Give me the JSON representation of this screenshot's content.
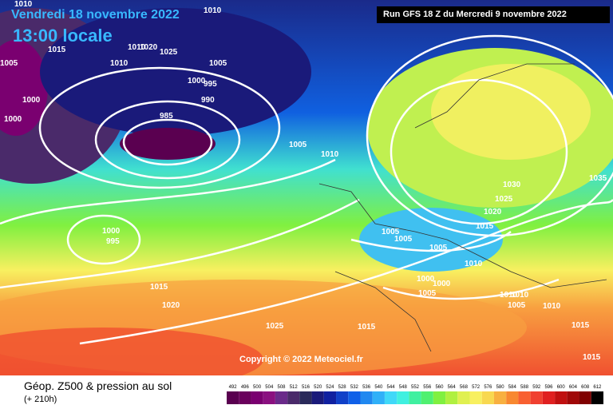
{
  "header": {
    "date_line": "Vendredi 18 novembre 2022",
    "time_line": "13:00 locale",
    "run_info": "Run GFS 18 Z du Mercredi 9 novembre 2022"
  },
  "map": {
    "copyright": "Copyright © 2022 Meteociel.fr",
    "pressure_labels": [
      "1010",
      "1010",
      "1015",
      "1010",
      "1020",
      "1025",
      "1010",
      "1005",
      "1005",
      "1000",
      "995",
      "990",
      "985",
      "1000",
      "1000",
      "1005",
      "1010",
      "1030",
      "1025",
      "1020",
      "1015",
      "1035",
      "1005",
      "1005",
      "1005",
      "1010",
      "1000",
      "1000",
      "1000",
      "995",
      "1005",
      "1015",
      "1020",
      "1025",
      "1015",
      "1010",
      "1010",
      "1005",
      "1010",
      "1015",
      "1015"
    ]
  },
  "legend": {
    "title": "Géop. Z500 & pression au sol",
    "subtitle": "(+ 210h)",
    "scale_values": [
      "492",
      "496",
      "500",
      "504",
      "508",
      "512",
      "516",
      "520",
      "524",
      "528",
      "532",
      "536",
      "540",
      "544",
      "548",
      "552",
      "556",
      "560",
      "564",
      "568",
      "572",
      "576",
      "580",
      "584",
      "588",
      "592",
      "596",
      "600",
      "604",
      "608",
      "612"
    ],
    "scale_colors": [
      "#5a0050",
      "#6a005c",
      "#7a0070",
      "#8a1080",
      "#6a2a8a",
      "#4a2a6a",
      "#2a2a5a",
      "#1a1a7a",
      "#1020a0",
      "#1040c8",
      "#1060e8",
      "#2088f0",
      "#30b0f8",
      "#40d8f8",
      "#40f0e0",
      "#40f0a0",
      "#50f070",
      "#80f040",
      "#b0f040",
      "#e0f050",
      "#f8f060",
      "#f8d850",
      "#f8b040",
      "#f88830",
      "#f86030",
      "#f04030",
      "#e02020",
      "#c01010",
      "#a00808",
      "#800000",
      "#000000"
    ]
  }
}
